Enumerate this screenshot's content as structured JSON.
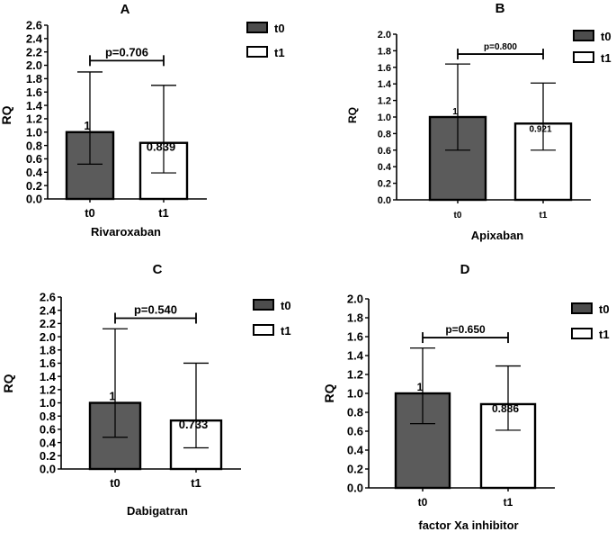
{
  "colors": {
    "t0_fill": "#4d4d4d",
    "t1_fill": "#ffffff",
    "axis": "#000000"
  },
  "chart_data": [
    {
      "id": "A",
      "panel_label": "A",
      "type": "bar",
      "title": "Rivaroxaban",
      "ylabel": "RQ",
      "categories": [
        "t0",
        "t1"
      ],
      "values": [
        1,
        0.839
      ],
      "value_labels": [
        "1",
        "0.839"
      ],
      "error_high": [
        1.9,
        1.7
      ],
      "error_low": [
        0.52,
        0.39
      ],
      "ylim": [
        0,
        2.6
      ],
      "ystep": 0.2,
      "yticks": [
        "0.0",
        "0.2",
        "0.4",
        "0.6",
        "0.8",
        "1.0",
        "1.2",
        "1.4",
        "1.6",
        "1.8",
        "2.0",
        "2.2",
        "2.4",
        "2.6"
      ],
      "significance": {
        "label": "p=0.706",
        "y": 2.07
      },
      "legend": [
        {
          "name": "t0",
          "fill": "#4d4d4d"
        },
        {
          "name": "t1",
          "fill": "#ffffff"
        }
      ]
    },
    {
      "id": "B",
      "panel_label": "B",
      "type": "bar",
      "title": "Apixaban",
      "ylabel": "RQ",
      "categories": [
        "t0",
        "t1"
      ],
      "values": [
        1,
        0.921
      ],
      "value_labels": [
        "1",
        "0.921"
      ],
      "error_high": [
        1.64,
        1.41
      ],
      "error_low": [
        0.6,
        0.6
      ],
      "ylim": [
        0,
        2.0
      ],
      "ystep": 0.2,
      "yticks": [
        "0.0",
        "0.2",
        "0.4",
        "0.6",
        "0.8",
        "1.0",
        "1.2",
        "1.4",
        "1.6",
        "1.8",
        "2.0"
      ],
      "significance": {
        "label": "p=0.800",
        "y": 1.76
      },
      "legend": [
        {
          "name": "t0",
          "fill": "#4d4d4d"
        },
        {
          "name": "t1",
          "fill": "#ffffff"
        }
      ]
    },
    {
      "id": "C",
      "panel_label": "C",
      "type": "bar",
      "title": "Dabigatran",
      "ylabel": "RQ",
      "categories": [
        "t0",
        "t1"
      ],
      "values": [
        1,
        0.733
      ],
      "value_labels": [
        "1",
        "0.733"
      ],
      "error_high": [
        2.12,
        1.6
      ],
      "error_low": [
        0.48,
        0.32
      ],
      "ylim": [
        0,
        2.6
      ],
      "ystep": 0.2,
      "yticks": [
        "0.0",
        "0.2",
        "0.4",
        "0.6",
        "0.8",
        "1.0",
        "1.2",
        "1.4",
        "1.6",
        "1.8",
        "2.0",
        "2.2",
        "2.4",
        "2.6"
      ],
      "significance": {
        "label": "p=0.540",
        "y": 2.28
      },
      "legend": [
        {
          "name": "t0",
          "fill": "#4d4d4d"
        },
        {
          "name": "t1",
          "fill": "#ffffff"
        }
      ]
    },
    {
      "id": "D",
      "panel_label": "D",
      "type": "bar",
      "title": "factor Xa inhibitor",
      "ylabel": "RQ",
      "categories": [
        "t0",
        "t1"
      ],
      "values": [
        1,
        0.886
      ],
      "value_labels": [
        "1",
        "0.886"
      ],
      "error_high": [
        1.48,
        1.29
      ],
      "error_low": [
        0.68,
        0.61
      ],
      "ylim": [
        0,
        2.0
      ],
      "ystep": 0.2,
      "yticks": [
        "0.0",
        "0.2",
        "0.4",
        "0.6",
        "0.8",
        "1.0",
        "1.2",
        "1.4",
        "1.6",
        "1.8",
        "2.0"
      ],
      "significance": {
        "label": "p=0.650",
        "y": 1.59
      },
      "legend": [
        {
          "name": "t0",
          "fill": "#4d4d4d"
        },
        {
          "name": "t1",
          "fill": "#ffffff"
        }
      ]
    }
  ]
}
